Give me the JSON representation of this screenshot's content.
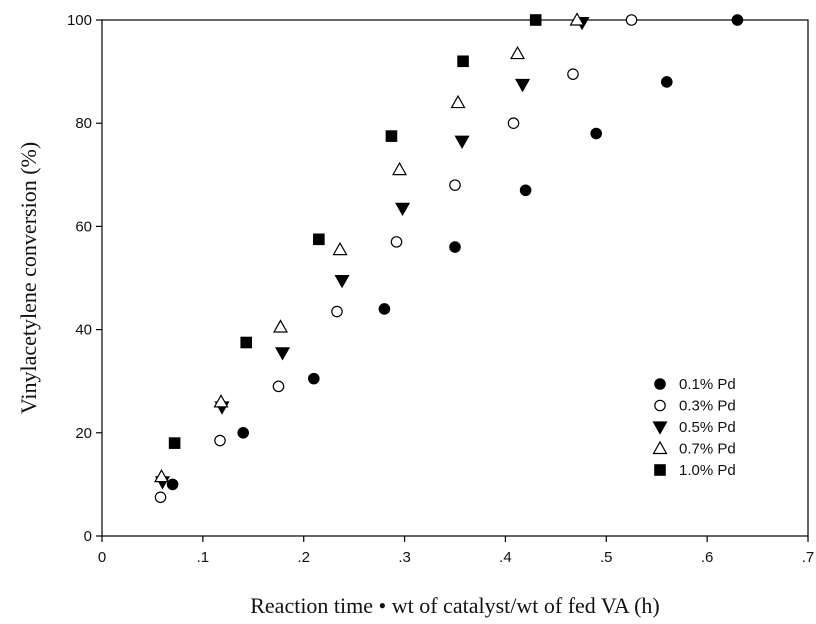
{
  "chart_data": {
    "type": "scatter",
    "xlabel": "Reaction time • wt of catalyst/wt of fed VA (h)",
    "ylabel": "Vinylacetylene conversion (%)",
    "xlim": [
      0,
      0.7
    ],
    "ylim": [
      0,
      100
    ],
    "x_ticks": [
      0,
      0.1,
      0.2,
      0.3,
      0.4,
      0.5,
      0.6,
      0.7
    ],
    "x_tick_labels": [
      "0",
      ".1",
      ".2",
      ".3",
      ".4",
      ".5",
      ".6",
      ".7"
    ],
    "y_ticks": [
      0,
      20,
      40,
      60,
      80,
      100
    ],
    "y_tick_labels": [
      "0",
      "20",
      "40",
      "60",
      "80",
      "100"
    ],
    "grid": false,
    "legend_position": "bottom-right",
    "series": [
      {
        "name": "0.1% Pd",
        "marker": "filled-circle",
        "x": [
          0.07,
          0.14,
          0.21,
          0.28,
          0.35,
          0.42,
          0.49,
          0.56,
          0.63
        ],
        "y": [
          10,
          20,
          30.5,
          44,
          56,
          67,
          78,
          88,
          100
        ]
      },
      {
        "name": "0.3% Pd",
        "marker": "open-circle",
        "x": [
          0.058,
          0.117,
          0.175,
          0.233,
          0.292,
          0.35,
          0.408,
          0.467,
          0.525
        ],
        "y": [
          7.5,
          18.5,
          29,
          43.5,
          57,
          68,
          80,
          89.5,
          100
        ]
      },
      {
        "name": "0.5% Pd",
        "marker": "filled-triangle-down",
        "x": [
          0.06,
          0.119,
          0.179,
          0.238,
          0.298,
          0.357,
          0.417,
          0.476
        ],
        "y": [
          10.5,
          25,
          35.5,
          49.5,
          63.5,
          76.5,
          87.5,
          99.5
        ]
      },
      {
        "name": "0.7% Pd",
        "marker": "open-triangle-up",
        "x": [
          0.059,
          0.118,
          0.177,
          0.236,
          0.295,
          0.353,
          0.412,
          0.471
        ],
        "y": [
          11.5,
          26,
          40.5,
          55.5,
          71,
          84,
          93.5,
          100
        ]
      },
      {
        "name": "1.0% Pd",
        "marker": "filled-square",
        "x": [
          0.072,
          0.143,
          0.215,
          0.287,
          0.358,
          0.43
        ],
        "y": [
          18,
          37.5,
          57.5,
          77.5,
          92,
          100
        ]
      }
    ]
  }
}
